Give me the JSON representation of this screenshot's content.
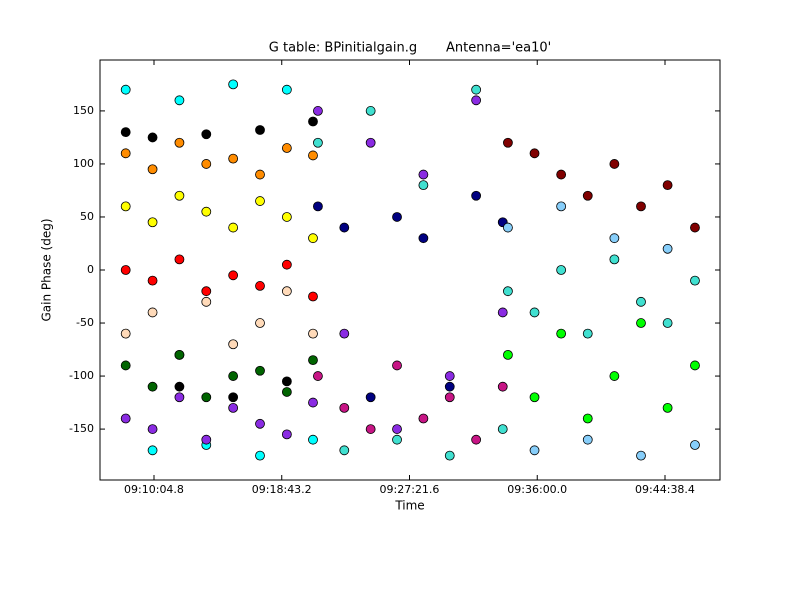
{
  "chart_data": {
    "type": "scatter",
    "title": "G table: BPinitialgain.g       Antenna='ea10'",
    "x_label": "Time",
    "y_label": "Gain Phase (deg)",
    "x": [
      32890,
      32999,
      33108,
      33217,
      33326,
      33435,
      33544,
      33650,
      33670,
      33777,
      33884,
      33991,
      34098,
      34205,
      34312,
      34420,
      34441,
      34549,
      34657,
      34765,
      34873,
      34981,
      35089,
      35200
    ],
    "series": [
      {
        "color": "#000000",
        "values": [
          130,
          125,
          -110,
          128,
          -120,
          132,
          -105,
          140,
          null,
          null,
          null,
          null,
          null,
          null,
          null,
          null,
          null,
          null,
          null,
          null,
          null,
          null,
          null,
          null
        ]
      },
      {
        "color": "#ff8c00",
        "values": [
          110,
          95,
          120,
          100,
          105,
          90,
          115,
          108,
          null,
          null,
          null,
          null,
          null,
          null,
          null,
          null,
          null,
          null,
          null,
          null,
          null,
          null,
          null,
          null
        ]
      },
      {
        "color": "#ffff00",
        "values": [
          60,
          45,
          70,
          55,
          40,
          65,
          50,
          30,
          null,
          null,
          null,
          null,
          null,
          null,
          null,
          null,
          null,
          null,
          null,
          null,
          null,
          null,
          null,
          null
        ]
      },
      {
        "color": "#ff0000",
        "values": [
          0,
          -10,
          10,
          -20,
          -5,
          -15,
          5,
          -25,
          null,
          null,
          null,
          null,
          null,
          null,
          null,
          null,
          null,
          null,
          null,
          null,
          null,
          null,
          null,
          null
        ]
      },
      {
        "color": "#ffdab9",
        "values": [
          -60,
          -40,
          -80,
          -30,
          -70,
          -50,
          -20,
          -60,
          null,
          null,
          null,
          null,
          null,
          null,
          null,
          null,
          null,
          null,
          null,
          null,
          null,
          null,
          null,
          null
        ]
      },
      {
        "color": "#006400",
        "values": [
          -90,
          -110,
          -80,
          -120,
          -100,
          -95,
          -115,
          -85,
          null,
          null,
          null,
          null,
          null,
          null,
          null,
          null,
          null,
          null,
          null,
          null,
          null,
          null,
          null,
          null
        ]
      },
      {
        "color": "#00ffff",
        "values": [
          170,
          -170,
          160,
          -165,
          175,
          -175,
          170,
          -160,
          null,
          null,
          null,
          null,
          null,
          null,
          null,
          null,
          null,
          null,
          null,
          null,
          null,
          null,
          null,
          null
        ]
      },
      {
        "color": "#8a2be2",
        "values": [
          -140,
          -150,
          -120,
          -160,
          -130,
          -145,
          -155,
          -125,
          150,
          -60,
          120,
          -150,
          90,
          -100,
          160,
          -40,
          null,
          null,
          null,
          null,
          null,
          null,
          null,
          null
        ]
      },
      {
        "color": "#000080",
        "values": [
          null,
          null,
          null,
          null,
          null,
          null,
          null,
          null,
          60,
          40,
          -120,
          50,
          30,
          -110,
          70,
          45,
          null,
          null,
          null,
          null,
          null,
          null,
          null,
          null
        ]
      },
      {
        "color": "#c71585",
        "values": [
          null,
          null,
          null,
          null,
          null,
          null,
          null,
          null,
          -100,
          -130,
          -150,
          -90,
          -140,
          -120,
          -160,
          -110,
          null,
          null,
          null,
          null,
          null,
          null,
          null,
          null
        ]
      },
      {
        "color": "#40e0d0",
        "values": [
          null,
          null,
          null,
          null,
          null,
          null,
          null,
          null,
          120,
          -170,
          150,
          -160,
          80,
          -175,
          170,
          -150,
          -20,
          -40,
          0,
          -60,
          10,
          -30,
          -50,
          -10
        ]
      },
      {
        "color": "#800000",
        "values": [
          null,
          null,
          null,
          null,
          null,
          null,
          null,
          null,
          null,
          null,
          null,
          null,
          null,
          null,
          null,
          null,
          120,
          110,
          90,
          70,
          100,
          60,
          80,
          40
        ]
      },
      {
        "color": "#00ff00",
        "values": [
          null,
          null,
          null,
          null,
          null,
          null,
          null,
          null,
          null,
          null,
          null,
          null,
          null,
          null,
          null,
          null,
          -80,
          -120,
          -60,
          -140,
          -100,
          -50,
          -130,
          -90
        ]
      },
      {
        "color": "#87cefa",
        "values": [
          null,
          null,
          null,
          null,
          null,
          null,
          null,
          null,
          null,
          null,
          null,
          null,
          null,
          null,
          null,
          null,
          40,
          -170,
          60,
          -160,
          30,
          -175,
          20,
          -165
        ]
      }
    ],
    "xlim": [
      32785.7,
      35301.6
    ],
    "xticks": [
      {
        "value": 33004.8,
        "label": "09:10:04.8"
      },
      {
        "value": 33523.2,
        "label": "09:18:43.2"
      },
      {
        "value": 34041.6,
        "label": "09:27:21.6"
      },
      {
        "value": 34560,
        "label": "09:36:00.0"
      },
      {
        "value": 35078.4,
        "label": "09:44:38.4"
      }
    ],
    "ylim": [
      -198,
      198
    ],
    "yticks": [
      -150,
      -100,
      -50,
      0,
      50,
      100,
      150
    ],
    "grid": false
  }
}
